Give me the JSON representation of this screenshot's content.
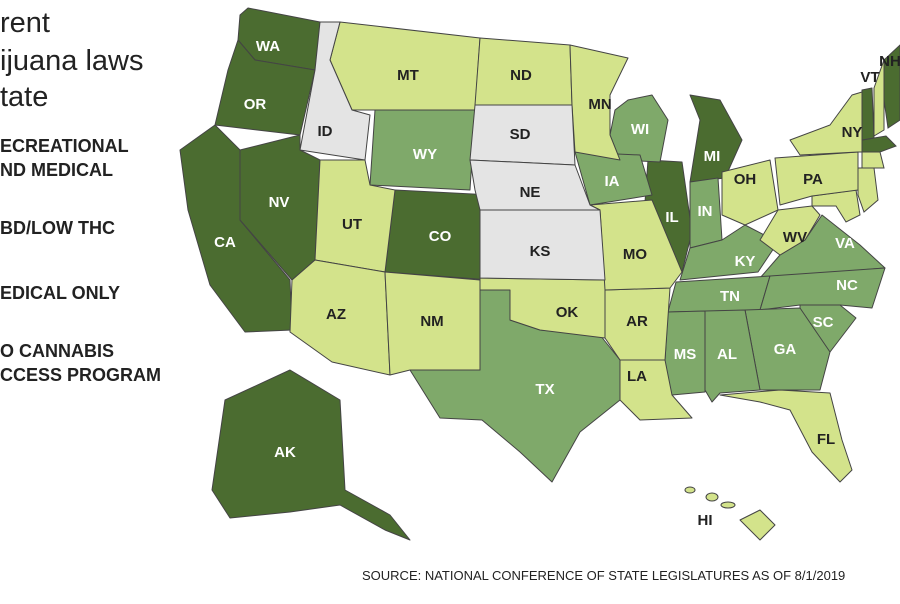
{
  "title": [
    "rent",
    "ijuana laws",
    "tate"
  ],
  "legend": [
    {
      "lines": [
        "ECREATIONAL",
        "ND MEDICAL"
      ],
      "color": "#4b6c30",
      "states": [
        "WA",
        "OR",
        "CA",
        "NV",
        "CO",
        "AK",
        "MI",
        "IL",
        "VT"
      ]
    },
    {
      "lines": [
        "BD/LOW THC"
      ],
      "color": "#7fa96a",
      "states": [
        "WY",
        "WI",
        "IA",
        "IN",
        "KY",
        "VA",
        "TN",
        "NC",
        "SC",
        "GA",
        "AL",
        "MS",
        "TX"
      ]
    },
    {
      "lines": [
        "EDICAL ONLY"
      ],
      "color": "#d3e38b",
      "states": [
        "MT",
        "ND",
        "MN",
        "UT",
        "AZ",
        "NM",
        "OK",
        "AR",
        "MO",
        "LA",
        "OH",
        "WV",
        "PA",
        "NY",
        "FL",
        "HI",
        "NH"
      ]
    },
    {
      "lines": [
        "O CANNABIS",
        "CCESS PROGRAM"
      ],
      "color": "#e4e4e4",
      "states": [
        "ID",
        "SD",
        "NE",
        "KS"
      ]
    }
  ],
  "source": "SOURCE: NATIONAL CONFERENCE OF STATE LEGISLATURES AS OF 8/1/2019"
}
